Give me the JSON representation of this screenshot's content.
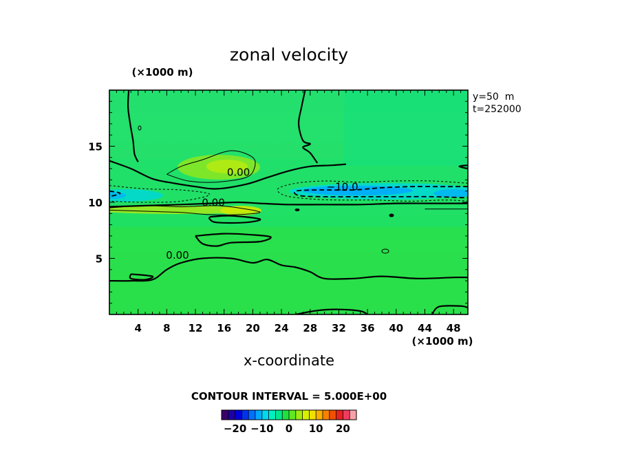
{
  "chart_data": {
    "type": "heatmap",
    "title": "zonal velocity",
    "xlabel": "x-coordinate",
    "x_unit": "(×1000 m)",
    "y_unit": "(×1000 m)",
    "xlim": [
      0,
      50
    ],
    "ylim": [
      0,
      20
    ],
    "x_ticks": [
      4,
      8,
      12,
      16,
      20,
      24,
      28,
      32,
      36,
      40,
      44,
      48
    ],
    "y_ticks": [
      5,
      10,
      15
    ],
    "x_tick_labels": [
      "4",
      "8",
      "12",
      "16",
      "20",
      "24",
      "28",
      "32",
      "36",
      "40",
      "44",
      "48"
    ],
    "y_tick_labels": [
      "5",
      "10",
      "15"
    ],
    "info_lines": [
      "y=50  m",
      "t=252000"
    ],
    "contour_interval_text": "CONTOUR INTERVAL = 5.000E+00",
    "colorbar": {
      "min": -25,
      "max": 25,
      "step": 2.5,
      "labels": [
        "−20",
        "−10",
        "0",
        "10",
        "20"
      ],
      "label_values": [
        -20,
        -10,
        0,
        10,
        20
      ],
      "colors": [
        "#3a0068",
        "#1c00a8",
        "#0000d8",
        "#0032f0",
        "#0070ff",
        "#00a8ff",
        "#00d8f0",
        "#00f0c0",
        "#00e890",
        "#20e040",
        "#60e820",
        "#a0ec10",
        "#d8f000",
        "#f0e000",
        "#f8b000",
        "#f88000",
        "#f05000",
        "#e82020",
        "#f03c60",
        "#f8a0a8"
      ]
    },
    "contours": [
      {
        "level": 0,
        "label": "0.00",
        "label_pos": [
          18,
          12.5
        ],
        "points": [
          [
            0,
            13.7
          ],
          [
            3,
            13
          ],
          [
            6,
            12.1
          ],
          [
            9,
            11.7
          ],
          [
            12,
            11.4
          ],
          [
            15,
            11.2
          ],
          [
            19,
            11.6
          ],
          [
            22,
            12.2
          ],
          [
            25,
            12.8
          ],
          [
            28,
            13.2
          ],
          [
            31,
            13.3
          ],
          [
            33,
            13.4
          ]
        ]
      },
      {
        "level": 0,
        "label": "0.00",
        "label_pos": [
          14.5,
          9.8
        ],
        "points": [
          [
            0,
            9.6
          ],
          [
            5,
            9.7
          ],
          [
            10,
            9.8
          ],
          [
            14,
            9.9
          ],
          [
            18,
            10.0
          ],
          [
            21,
            9.9
          ],
          [
            25,
            9.8
          ],
          [
            30,
            9.8
          ],
          [
            35,
            9.8
          ],
          [
            40,
            9.9
          ],
          [
            45,
            9.9
          ],
          [
            50,
            9.9
          ]
        ]
      },
      {
        "level": 0,
        "label": "0.00",
        "label_pos": [
          9.5,
          5.1
        ],
        "points": [
          [
            0,
            3.0
          ],
          [
            3,
            3.0
          ],
          [
            6,
            3.1
          ],
          [
            8,
            4.0
          ],
          [
            10,
            4.6
          ],
          [
            13,
            5.0
          ],
          [
            17,
            5.0
          ],
          [
            20,
            4.6
          ],
          [
            22,
            4.9
          ],
          [
            24,
            4.4
          ],
          [
            26,
            4.2
          ],
          [
            28,
            3.8
          ],
          [
            30,
            3.2
          ],
          [
            34,
            3.2
          ],
          [
            38,
            3.4
          ],
          [
            43,
            3.2
          ],
          [
            48,
            3.3
          ],
          [
            50,
            3.3
          ]
        ]
      },
      {
        "level": 0,
        "label": "",
        "label_pos": [
          0,
          0
        ],
        "points": [
          [
            2.7,
            20
          ],
          [
            2.6,
            18.5
          ],
          [
            2.9,
            17
          ],
          [
            3.3,
            15.5
          ],
          [
            3.5,
            14.3
          ],
          [
            4.0,
            13.6
          ]
        ]
      },
      {
        "level": 0,
        "label": "",
        "label_pos": [
          0,
          0
        ],
        "points": [
          [
            27.3,
            20
          ],
          [
            26.8,
            18.5
          ],
          [
            26.4,
            17
          ],
          [
            27.0,
            15.5
          ],
          [
            28.0,
            15.2
          ],
          [
            27.0,
            14.9
          ],
          [
            28.0,
            14.4
          ],
          [
            29.0,
            13.5
          ]
        ]
      },
      {
        "level": 0,
        "label": "",
        "label_pos": [
          0,
          0
        ],
        "points": [
          [
            50,
            13.3
          ],
          [
            48.8,
            13.2
          ],
          [
            50,
            13.0
          ]
        ]
      },
      {
        "level": 0,
        "label": "",
        "label_pos": [
          0,
          0
        ],
        "points": [
          [
            14,
            8.7
          ],
          [
            17,
            8.8
          ],
          [
            21,
            8.5
          ],
          [
            19,
            8.2
          ],
          [
            15,
            8.2
          ],
          [
            14,
            8.5
          ],
          [
            14,
            8.7
          ]
        ]
      },
      {
        "level": 0,
        "label": "",
        "label_pos": [
          0,
          0
        ],
        "points": [
          [
            12,
            7.0
          ],
          [
            16,
            7.2
          ],
          [
            20,
            7.1
          ],
          [
            22.5,
            6.9
          ],
          [
            21,
            6.5
          ],
          [
            17,
            6.4
          ],
          [
            15,
            6.1
          ],
          [
            13,
            6.3
          ],
          [
            12,
            7.0
          ]
        ]
      },
      {
        "level": 0,
        "label": "",
        "label_pos": [
          0,
          0
        ],
        "points": [
          [
            3,
            3.6
          ],
          [
            6,
            3.4
          ],
          [
            5,
            3.1
          ],
          [
            3,
            3.2
          ],
          [
            3,
            3.6
          ]
        ]
      },
      {
        "level": 0,
        "label": "",
        "label_pos": [
          0,
          0
        ],
        "points": [
          [
            26,
            0
          ],
          [
            29,
            0.35
          ],
          [
            32,
            0.45
          ],
          [
            35,
            0.3
          ],
          [
            36,
            0
          ]
        ]
      },
      {
        "level": 0,
        "label": "",
        "label_pos": [
          0,
          0
        ],
        "points": [
          [
            45,
            0
          ],
          [
            46,
            0.7
          ],
          [
            49,
            0.75
          ],
          [
            50,
            0.6
          ]
        ]
      },
      {
        "level": 5,
        "label": "",
        "label_pos": [
          0,
          0
        ],
        "points": [
          [
            8,
            12.5
          ],
          [
            10,
            13.2
          ],
          [
            13,
            13.8
          ],
          [
            17,
            14.6
          ],
          [
            20,
            14.0
          ],
          [
            20.2,
            13.0
          ],
          [
            19,
            12.2
          ],
          [
            15,
            11.8
          ],
          [
            11,
            11.9
          ],
          [
            8,
            12.5
          ]
        ]
      },
      {
        "level": 5,
        "label": "",
        "label_pos": [
          0,
          0
        ],
        "points": [
          [
            0,
            9.5
          ],
          [
            5,
            9.7
          ],
          [
            10,
            9.6
          ],
          [
            15,
            9.7
          ],
          [
            19,
            9.4
          ],
          [
            21,
            9.1
          ],
          [
            18,
            8.9
          ],
          [
            14,
            8.9
          ],
          [
            10,
            9.1
          ],
          [
            5,
            9.2
          ],
          [
            0,
            9.3
          ]
        ]
      },
      {
        "level": 5,
        "label": "",
        "label_pos": [
          0,
          0
        ],
        "points": [
          [
            44,
            9.4
          ],
          [
            47,
            9.4
          ],
          [
            50,
            9.4
          ]
        ]
      },
      {
        "level": -5,
        "label": "",
        "label_pos": [
          0,
          0
        ],
        "points": [
          [
            0,
            11.5
          ],
          [
            5,
            11.2
          ],
          [
            10,
            11.1
          ],
          [
            14,
            10.7
          ],
          [
            10,
            10.1
          ],
          [
            5,
            10.0
          ],
          [
            0,
            10.1
          ]
        ]
      },
      {
        "level": -5,
        "label": "",
        "label_pos": [
          0,
          0
        ],
        "points": [
          [
            50,
            11.7
          ],
          [
            45,
            11.9
          ],
          [
            40,
            11.9
          ],
          [
            35,
            11.8
          ],
          [
            30,
            11.9
          ],
          [
            26,
            11.7
          ],
          [
            23.5,
            11.2
          ],
          [
            24.5,
            10.6
          ],
          [
            28,
            10.3
          ],
          [
            32,
            10.2
          ],
          [
            37,
            10.2
          ],
          [
            42,
            10.1
          ],
          [
            47,
            10.2
          ],
          [
            50,
            10.1
          ]
        ]
      },
      {
        "level": -10,
        "label": "−10.0",
        "label_pos": [
          32.5,
          11.2
        ],
        "points": [
          [
            50,
            11.4
          ],
          [
            46,
            11.4
          ],
          [
            42,
            11.4
          ],
          [
            38,
            11.3
          ],
          [
            34,
            11.1
          ],
          [
            29,
            11.1
          ],
          [
            26,
            11.0
          ],
          [
            26.5,
            10.6
          ],
          [
            30,
            10.5
          ],
          [
            35,
            10.5
          ],
          [
            40,
            10.5
          ],
          [
            45,
            10.5
          ],
          [
            50,
            10.4
          ]
        ]
      },
      {
        "level": -10,
        "label": "",
        "label_pos": [
          0,
          0
        ],
        "points": [
          [
            0,
            11.0
          ],
          [
            1.5,
            10.8
          ],
          [
            0,
            10.5
          ]
        ]
      }
    ]
  }
}
